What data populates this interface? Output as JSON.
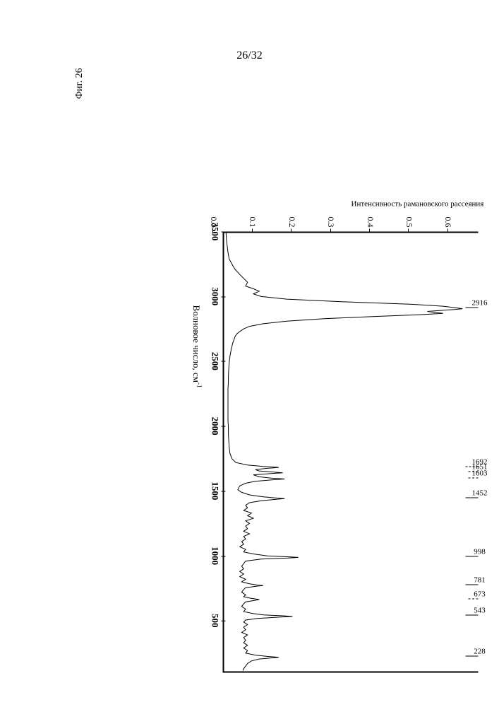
{
  "page_number": "26/32",
  "figure_caption": "Фиг. 26",
  "chart": {
    "type": "line",
    "background_color": "#ffffff",
    "line_color": "#000000",
    "line_width": 1,
    "xlabel": "Волновое число, см",
    "xlabel_sup": "-1",
    "ylabel": "Интенсивность рамановского рассеяния",
    "label_fontsize": 12,
    "xlim": [
      3500,
      120
    ],
    "ylim": [
      0.0,
      0.65
    ],
    "xticks": [
      3500,
      3000,
      2500,
      2000,
      1500,
      1000,
      500
    ],
    "yticks": [
      0.0,
      0.1,
      0.2,
      0.3,
      0.4,
      0.5,
      0.6
    ],
    "ytick_labels": [
      "0.0",
      "0.1",
      "0.2",
      "0.3",
      "0.4",
      "0.5",
      "0.6"
    ],
    "peak_labels": [
      {
        "x": 2916,
        "text": "2916",
        "tick_len": 18,
        "style": "solid"
      },
      {
        "x": 1692,
        "text": "1692",
        "tick_len": 18,
        "style": "dash"
      },
      {
        "x": 1651,
        "text": "1651",
        "tick_len": 14,
        "style": "dash"
      },
      {
        "x": 1603,
        "text": "1603",
        "tick_len": 14,
        "style": "dash"
      },
      {
        "x": 1452,
        "text": "1452",
        "tick_len": 18,
        "style": "solid"
      },
      {
        "x": 998,
        "text": "998",
        "tick_len": 18,
        "style": "solid"
      },
      {
        "x": 781,
        "text": "781",
        "tick_len": 18,
        "style": "solid"
      },
      {
        "x": 673,
        "text": "673",
        "tick_len": 14,
        "style": "dash"
      },
      {
        "x": 543,
        "text": "543",
        "tick_len": 18,
        "style": "solid"
      },
      {
        "x": 228,
        "text": "228",
        "tick_len": 18,
        "style": "solid"
      }
    ],
    "spectrum": [
      [
        3500,
        0.005
      ],
      [
        3450,
        0.006
      ],
      [
        3400,
        0.008
      ],
      [
        3350,
        0.01
      ],
      [
        3300,
        0.013
      ],
      [
        3260,
        0.02
      ],
      [
        3220,
        0.028
      ],
      [
        3180,
        0.04
      ],
      [
        3150,
        0.05
      ],
      [
        3120,
        0.06
      ],
      [
        3090,
        0.055
      ],
      [
        3070,
        0.075
      ],
      [
        3050,
        0.09
      ],
      [
        3030,
        0.075
      ],
      [
        3010,
        0.095
      ],
      [
        2990,
        0.16
      ],
      [
        2970,
        0.3
      ],
      [
        2950,
        0.48
      ],
      [
        2935,
        0.56
      ],
      [
        2920,
        0.6
      ],
      [
        2916,
        0.61
      ],
      [
        2910,
        0.59
      ],
      [
        2895,
        0.52
      ],
      [
        2880,
        0.56
      ],
      [
        2870,
        0.5
      ],
      [
        2855,
        0.38
      ],
      [
        2840,
        0.26
      ],
      [
        2820,
        0.16
      ],
      [
        2800,
        0.1
      ],
      [
        2780,
        0.065
      ],
      [
        2760,
        0.05
      ],
      [
        2740,
        0.04
      ],
      [
        2720,
        0.032
      ],
      [
        2700,
        0.028
      ],
      [
        2650,
        0.022
      ],
      [
        2600,
        0.018
      ],
      [
        2550,
        0.015
      ],
      [
        2500,
        0.013
      ],
      [
        2450,
        0.012
      ],
      [
        2400,
        0.011
      ],
      [
        2350,
        0.011
      ],
      [
        2300,
        0.01
      ],
      [
        2250,
        0.01
      ],
      [
        2200,
        0.01
      ],
      [
        2150,
        0.01
      ],
      [
        2100,
        0.01
      ],
      [
        2050,
        0.01
      ],
      [
        2000,
        0.011
      ],
      [
        1950,
        0.011
      ],
      [
        1900,
        0.012
      ],
      [
        1850,
        0.013
      ],
      [
        1800,
        0.015
      ],
      [
        1760,
        0.02
      ],
      [
        1730,
        0.03
      ],
      [
        1710,
        0.06
      ],
      [
        1700,
        0.1
      ],
      [
        1692,
        0.14
      ],
      [
        1685,
        0.11
      ],
      [
        1675,
        0.08
      ],
      [
        1665,
        0.09
      ],
      [
        1655,
        0.13
      ],
      [
        1651,
        0.15
      ],
      [
        1645,
        0.12
      ],
      [
        1635,
        0.075
      ],
      [
        1620,
        0.09
      ],
      [
        1610,
        0.12
      ],
      [
        1603,
        0.155
      ],
      [
        1598,
        0.13
      ],
      [
        1585,
        0.08
      ],
      [
        1570,
        0.055
      ],
      [
        1550,
        0.04
      ],
      [
        1520,
        0.035
      ],
      [
        1500,
        0.045
      ],
      [
        1480,
        0.065
      ],
      [
        1465,
        0.1
      ],
      [
        1455,
        0.14
      ],
      [
        1452,
        0.155
      ],
      [
        1448,
        0.14
      ],
      [
        1435,
        0.095
      ],
      [
        1420,
        0.065
      ],
      [
        1400,
        0.055
      ],
      [
        1380,
        0.06
      ],
      [
        1360,
        0.05
      ],
      [
        1340,
        0.07
      ],
      [
        1320,
        0.06
      ],
      [
        1300,
        0.075
      ],
      [
        1280,
        0.055
      ],
      [
        1260,
        0.065
      ],
      [
        1240,
        0.055
      ],
      [
        1220,
        0.06
      ],
      [
        1200,
        0.05
      ],
      [
        1180,
        0.065
      ],
      [
        1160,
        0.05
      ],
      [
        1140,
        0.055
      ],
      [
        1120,
        0.045
      ],
      [
        1100,
        0.05
      ],
      [
        1080,
        0.04
      ],
      [
        1060,
        0.055
      ],
      [
        1040,
        0.05
      ],
      [
        1025,
        0.075
      ],
      [
        1010,
        0.11
      ],
      [
        1002,
        0.17
      ],
      [
        998,
        0.19
      ],
      [
        994,
        0.165
      ],
      [
        985,
        0.095
      ],
      [
        970,
        0.055
      ],
      [
        950,
        0.05
      ],
      [
        930,
        0.045
      ],
      [
        910,
        0.05
      ],
      [
        890,
        0.04
      ],
      [
        870,
        0.05
      ],
      [
        850,
        0.04
      ],
      [
        830,
        0.055
      ],
      [
        810,
        0.045
      ],
      [
        795,
        0.065
      ],
      [
        785,
        0.085
      ],
      [
        781,
        0.1
      ],
      [
        777,
        0.085
      ],
      [
        765,
        0.055
      ],
      [
        750,
        0.05
      ],
      [
        730,
        0.045
      ],
      [
        710,
        0.055
      ],
      [
        695,
        0.05
      ],
      [
        685,
        0.065
      ],
      [
        678,
        0.08
      ],
      [
        673,
        0.09
      ],
      [
        668,
        0.08
      ],
      [
        655,
        0.055
      ],
      [
        640,
        0.05
      ],
      [
        620,
        0.045
      ],
      [
        600,
        0.055
      ],
      [
        580,
        0.05
      ],
      [
        565,
        0.075
      ],
      [
        555,
        0.1
      ],
      [
        548,
        0.15
      ],
      [
        543,
        0.175
      ],
      [
        538,
        0.145
      ],
      [
        528,
        0.085
      ],
      [
        515,
        0.055
      ],
      [
        500,
        0.05
      ],
      [
        480,
        0.06
      ],
      [
        460,
        0.05
      ],
      [
        440,
        0.055
      ],
      [
        420,
        0.045
      ],
      [
        400,
        0.06
      ],
      [
        380,
        0.05
      ],
      [
        360,
        0.055
      ],
      [
        340,
        0.05
      ],
      [
        320,
        0.06
      ],
      [
        300,
        0.05
      ],
      [
        280,
        0.06
      ],
      [
        260,
        0.055
      ],
      [
        245,
        0.08
      ],
      [
        235,
        0.11
      ],
      [
        230,
        0.13
      ],
      [
        228,
        0.14
      ],
      [
        225,
        0.13
      ],
      [
        215,
        0.09
      ],
      [
        200,
        0.07
      ],
      [
        180,
        0.06
      ],
      [
        160,
        0.055
      ],
      [
        140,
        0.05
      ],
      [
        125,
        0.048
      ]
    ]
  }
}
